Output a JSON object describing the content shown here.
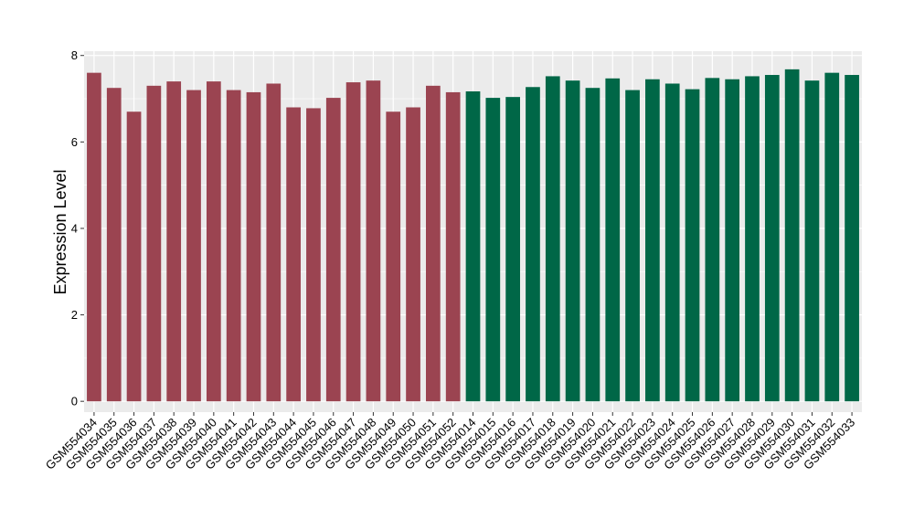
{
  "chart_data": {
    "type": "bar",
    "ylabel": "Expression Level",
    "xlabel": "",
    "ylim": [
      -0.25,
      8.1
    ],
    "yticks": [
      0,
      2,
      4,
      6,
      8
    ],
    "grid": true,
    "colors": {
      "group_a": "#9B4451",
      "group_b": "#006747",
      "panel_bg": "#EBEBEB",
      "grid": "#FFFFFF"
    },
    "categories": [
      "GSM554034",
      "GSM554035",
      "GSM554036",
      "GSM554037",
      "GSM554038",
      "GSM554039",
      "GSM554040",
      "GSM554041",
      "GSM554042",
      "GSM554043",
      "GSM554044",
      "GSM554045",
      "GSM554046",
      "GSM554047",
      "GSM554048",
      "GSM554049",
      "GSM554050",
      "GSM554051",
      "GSM554052",
      "GSM554014",
      "GSM554015",
      "GSM554016",
      "GSM554017",
      "GSM554018",
      "GSM554019",
      "GSM554020",
      "GSM554021",
      "GSM554022",
      "GSM554023",
      "GSM554024",
      "GSM554025",
      "GSM554026",
      "GSM554027",
      "GSM554028",
      "GSM554029",
      "GSM554030",
      "GSM554031",
      "GSM554032",
      "GSM554033"
    ],
    "values": [
      7.6,
      7.25,
      6.7,
      7.3,
      7.4,
      7.2,
      7.4,
      7.2,
      7.15,
      7.35,
      6.8,
      6.78,
      7.02,
      7.38,
      7.42,
      6.7,
      6.8,
      7.3,
      7.15,
      7.17,
      7.02,
      7.04,
      7.27,
      7.52,
      7.42,
      7.25,
      7.47,
      7.2,
      7.45,
      7.35,
      7.22,
      7.48,
      7.45,
      7.52,
      7.55,
      7.68,
      7.42,
      7.6,
      7.55
    ],
    "groups": [
      "group_a",
      "group_a",
      "group_a",
      "group_a",
      "group_a",
      "group_a",
      "group_a",
      "group_a",
      "group_a",
      "group_a",
      "group_a",
      "group_a",
      "group_a",
      "group_a",
      "group_a",
      "group_a",
      "group_a",
      "group_a",
      "group_a",
      "group_b",
      "group_b",
      "group_b",
      "group_b",
      "group_b",
      "group_b",
      "group_b",
      "group_b",
      "group_b",
      "group_b",
      "group_b",
      "group_b",
      "group_b",
      "group_b",
      "group_b",
      "group_b",
      "group_b",
      "group_b",
      "group_b",
      "group_b"
    ]
  }
}
